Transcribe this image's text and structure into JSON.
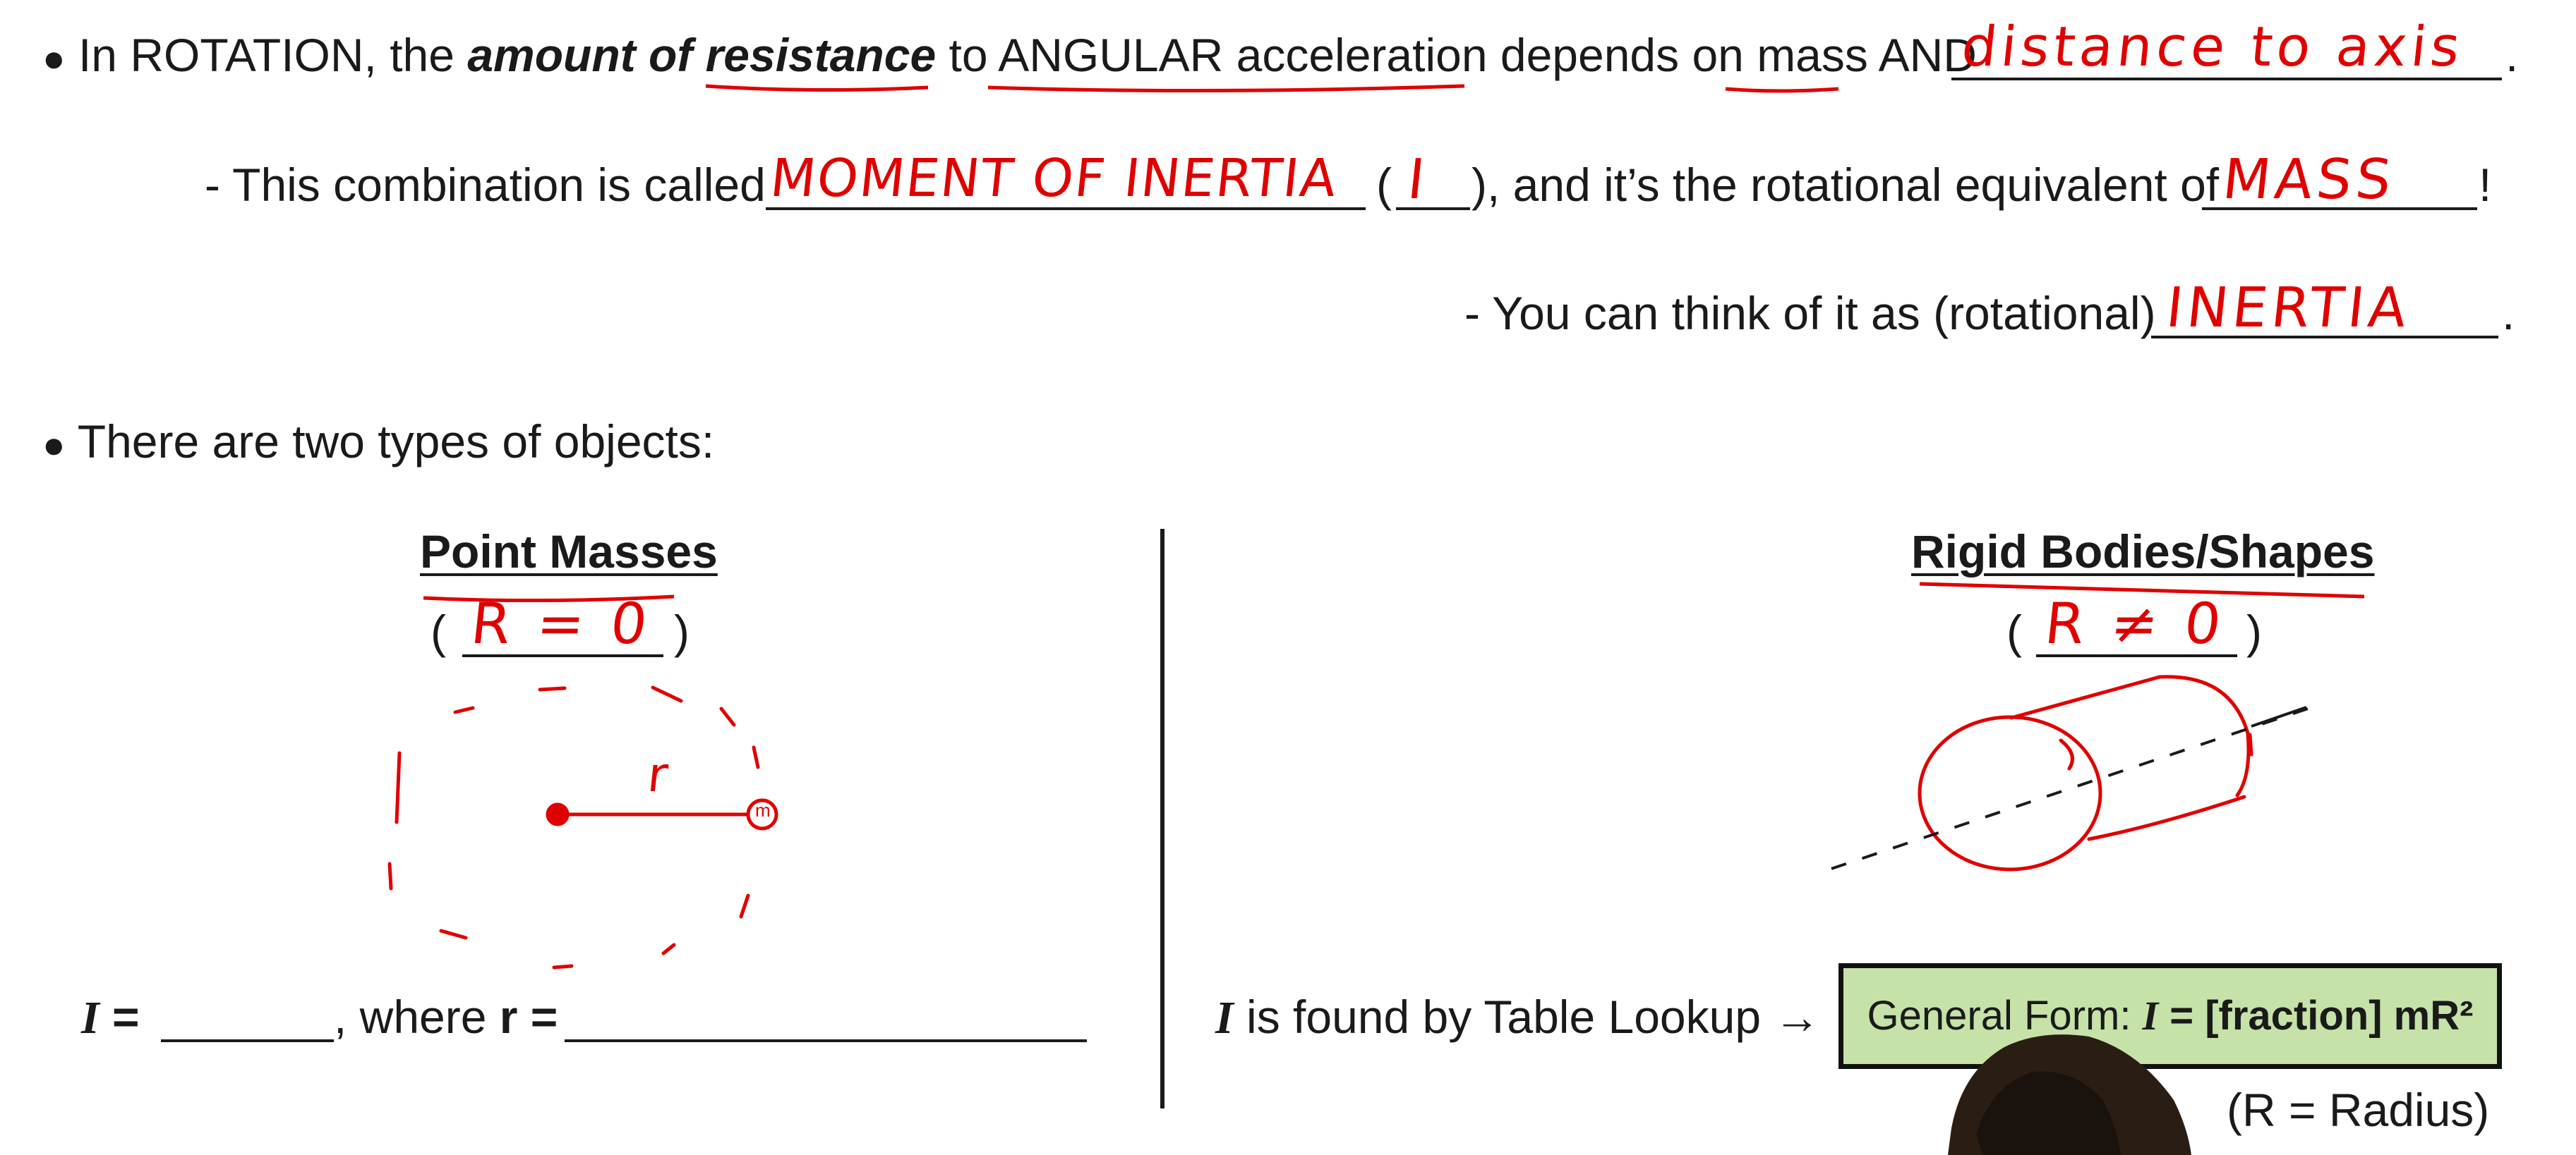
{
  "line1": {
    "bullet": "●",
    "t1": "In ROTATION, the ",
    "t2": "amount of resistance",
    "t3": " to ",
    "t4": "ANGULAR acceleration",
    "t5": " depends on ",
    "t6": "mass",
    "t7": " AND",
    "end": ".",
    "answer": "distance to axis"
  },
  "line2": {
    "t1": "- This combination is called",
    "answer1": "MOMENT OF INERTIA",
    "t2": "(",
    "answer2": "I",
    "t3": "), and it’s the rotational equivalent of",
    "answer3": "MASS",
    "end": "!"
  },
  "line3": {
    "t1": "- You can think of it as (rotational)",
    "answer": "INERTIA",
    "end": "."
  },
  "line4": {
    "bullet": "●",
    "t1": "There are two types of objects:"
  },
  "left": {
    "heading": "Point Masses",
    "paren_open": "(",
    "paren_close": ")",
    "answer": "R = 0",
    "r_label": "r",
    "m_label": "m",
    "formula_I": "I",
    "formula_eq": " = ",
    "formula_where": ", where ",
    "formula_r": "r",
    "formula_eq2": " ="
  },
  "right": {
    "heading": "Rigid Bodies/Shapes",
    "paren_open": "(",
    "paren_close": ")",
    "answer": "R ≠ 0",
    "lookup_I": "I",
    "lookup_text": " is found by Table Lookup →",
    "box_text1": "General Form:  ",
    "box_I": "I",
    "box_text2": " = [fraction] mR²",
    "radius_note": "(R = Radius)"
  },
  "colors": {
    "ink": "#1a1a1a",
    "annotation_red": "#e00000",
    "formula_box_green": "#c6e2a8"
  }
}
